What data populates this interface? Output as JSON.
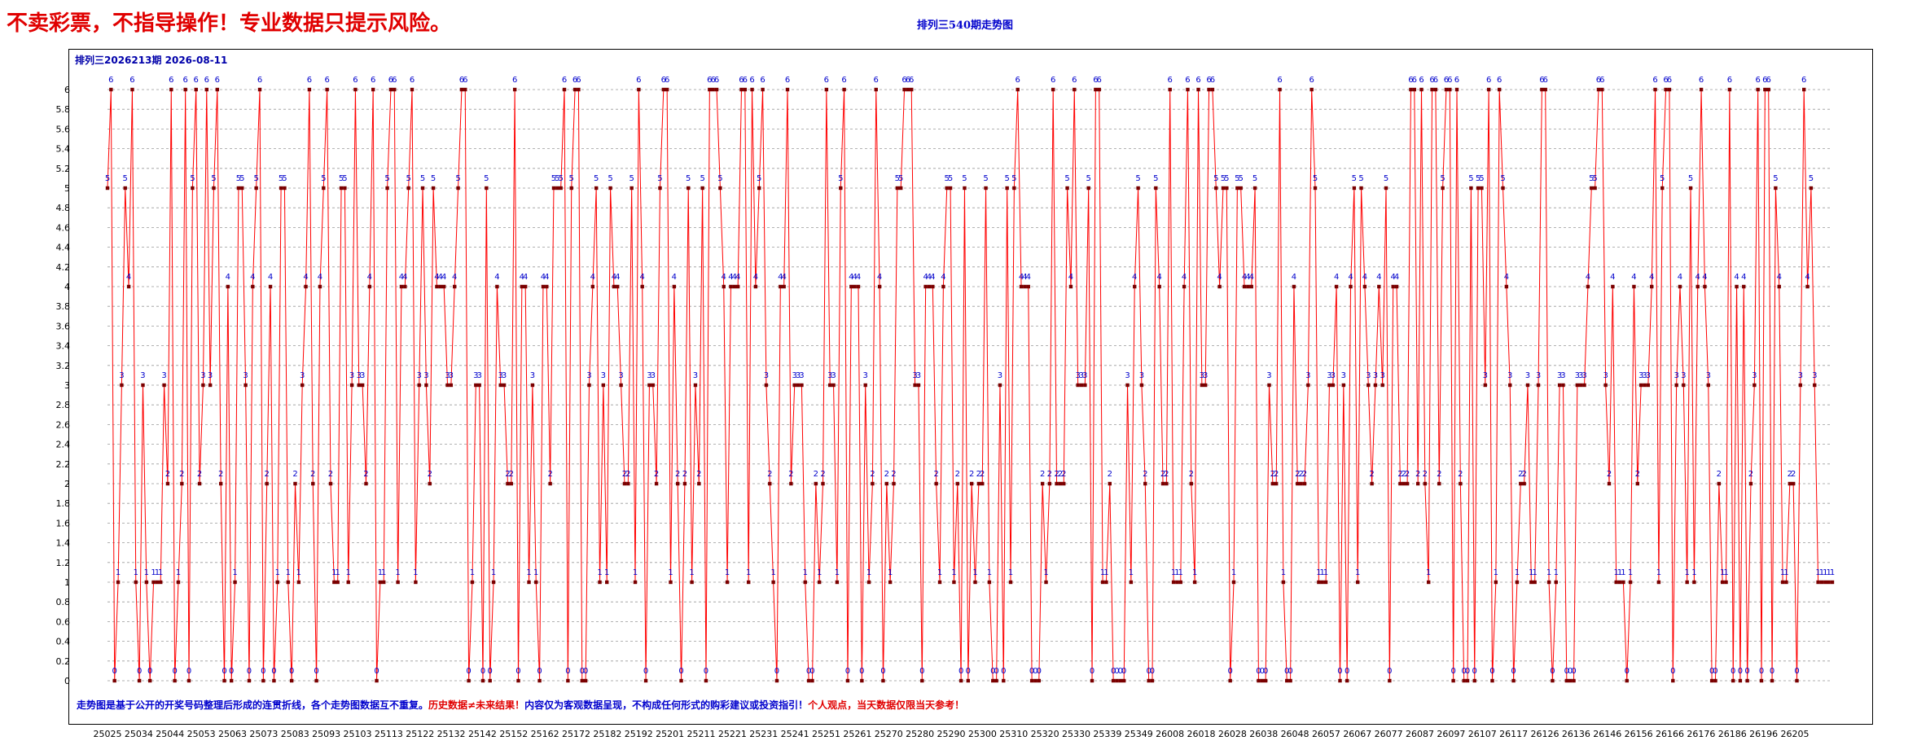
{
  "header": {
    "warning": "不卖彩票，不指导操作！专业数据只提示风险。"
  },
  "chart_data": {
    "type": "line",
    "title": "排列三540期走势图",
    "issue_label": "排列三2026213期  2026-08-11",
    "ylim": [
      0,
      6
    ],
    "y_ticks": [
      "0",
      "0.2",
      "0.4",
      "0.6",
      "0.8",
      "1",
      "1.2",
      "1.4",
      "1.6",
      "1.8",
      "2",
      "2.2",
      "2.4",
      "2.6",
      "2.8",
      "3",
      "3.2",
      "3.4",
      "3.6",
      "3.8",
      "4",
      "4.2",
      "4.4",
      "4.6",
      "4.8",
      "5",
      "5.2",
      "5.4",
      "5.6",
      "5.8",
      "6"
    ],
    "x_tick_labels": [
      "25025",
      "25034",
      "25044",
      "25053",
      "25063",
      "25073",
      "25083",
      "25093",
      "25103",
      "25113",
      "25122",
      "25132",
      "25142",
      "25152",
      "25162",
      "25172",
      "25182",
      "25192",
      "25201",
      "25211",
      "25221",
      "25231",
      "25241",
      "25251",
      "25261",
      "25270",
      "25280",
      "25290",
      "25300",
      "25310",
      "25320",
      "25330",
      "25339",
      "25349",
      "26008",
      "26018",
      "26028",
      "26038",
      "26048",
      "26057",
      "26067",
      "26077",
      "26087",
      "26097",
      "26107",
      "26117",
      "26126",
      "26136",
      "26146",
      "26156",
      "26166",
      "26176",
      "26186",
      "26196",
      "26205"
    ],
    "grid": true,
    "legend": "none",
    "line_color": "#ff0000",
    "marker_color": "#7a0000",
    "label_color": "#0000cc",
    "values": [
      5,
      6,
      0,
      1,
      3,
      5,
      4,
      6,
      1,
      0,
      3,
      1,
      0,
      1,
      1,
      1,
      3,
      2,
      6,
      0,
      1,
      2,
      6,
      0,
      5,
      6,
      2,
      3,
      6,
      3,
      5,
      6,
      2,
      0,
      4,
      0,
      1,
      5,
      5,
      3,
      0,
      4,
      5,
      6,
      0,
      2,
      4,
      0,
      1,
      5,
      5,
      1,
      0,
      2,
      1,
      3,
      4,
      6,
      2,
      0,
      4,
      5,
      6,
      2,
      1,
      1,
      5,
      5,
      1,
      3,
      6,
      3,
      3,
      2,
      4,
      6,
      0,
      1,
      1,
      5,
      6,
      6,
      1,
      4,
      4,
      5,
      6,
      1,
      3,
      5,
      3,
      2,
      5,
      4,
      4,
      4,
      3,
      3,
      4,
      5,
      6,
      6,
      0,
      1,
      3,
      3,
      0,
      5,
      0,
      1,
      4,
      3,
      3,
      2,
      2,
      6,
      0,
      4,
      4,
      1,
      3,
      1,
      0,
      4,
      4,
      2,
      5,
      5,
      5,
      6,
      0,
      5,
      6,
      6,
      0,
      0,
      3,
      4,
      5,
      1,
      3,
      1,
      5,
      4,
      4,
      3,
      2,
      2,
      5,
      1,
      6,
      4,
      0,
      3,
      3,
      2,
      5,
      6,
      6,
      1,
      4,
      2,
      0,
      2,
      5,
      1,
      3,
      2,
      5,
      0,
      6,
      6,
      6,
      5,
      4,
      1,
      4,
      4,
      4,
      6,
      6,
      1,
      6,
      4,
      5,
      6,
      3,
      2,
      1,
      0,
      4,
      4,
      6,
      2,
      3,
      3,
      3,
      1,
      0,
      0,
      2,
      1,
      2,
      6,
      3,
      3,
      1,
      5,
      6,
      0,
      4,
      4,
      4,
      0,
      3,
      1,
      2,
      6,
      4,
      0,
      2,
      1,
      2,
      5,
      5,
      6,
      6,
      6,
      3,
      3,
      0,
      4,
      4,
      4,
      2,
      1,
      4,
      5,
      5,
      1,
      2,
      0,
      5,
      0,
      2,
      1,
      2,
      2,
      5,
      1,
      0,
      0,
      3,
      0,
      5,
      1,
      5,
      6,
      4,
      4,
      4,
      0,
      0,
      0,
      2,
      1,
      2,
      6,
      2,
      2,
      2,
      5,
      4,
      6,
      3,
      3,
      3,
      5,
      0,
      6,
      6,
      1,
      1,
      2,
      0,
      0,
      0,
      0,
      3,
      1,
      4,
      5,
      3,
      2,
      0,
      0,
      5,
      4,
      2,
      2,
      6,
      1,
      1,
      1,
      4,
      6,
      2,
      1,
      6,
      3,
      3,
      6,
      6,
      5,
      4,
      5,
      5,
      0,
      1,
      5,
      5,
      4,
      4,
      4,
      5,
      0,
      0,
      0,
      3,
      2,
      2,
      6,
      1,
      0,
      0,
      4,
      2,
      2,
      2,
      3,
      6,
      5,
      1,
      1,
      1,
      3,
      3,
      4,
      0,
      3,
      0,
      4,
      5,
      1,
      5,
      4,
      3,
      2,
      3,
      4,
      3,
      5,
      0,
      4,
      4,
      2,
      2,
      2,
      6,
      6,
      2,
      6,
      2,
      1,
      6,
      6,
      2,
      5,
      6,
      6,
      0,
      6,
      2,
      0,
      0,
      5,
      0,
      5,
      5,
      3,
      6,
      0,
      1,
      6,
      5,
      4,
      3,
      0,
      1,
      2,
      2,
      3,
      1,
      1,
      3,
      6,
      6,
      1,
      0,
      1,
      3,
      3,
      0,
      0,
      0,
      3,
      3,
      3,
      4,
      5,
      5,
      6,
      6,
      3,
      2,
      4,
      1,
      1,
      1,
      0,
      1,
      4,
      2,
      3,
      3,
      3,
      4,
      6,
      1,
      5,
      6,
      6,
      0,
      3,
      4,
      3,
      1,
      5,
      1,
      4,
      6,
      4,
      3,
      0,
      0,
      2,
      1,
      1,
      6,
      0,
      4,
      0,
      4,
      0,
      2,
      3,
      6,
      0,
      6,
      6,
      0,
      5,
      4,
      1,
      1,
      2,
      2,
      0,
      3,
      6,
      4,
      5,
      3,
      1,
      1,
      1,
      1,
      1
    ]
  }
}
